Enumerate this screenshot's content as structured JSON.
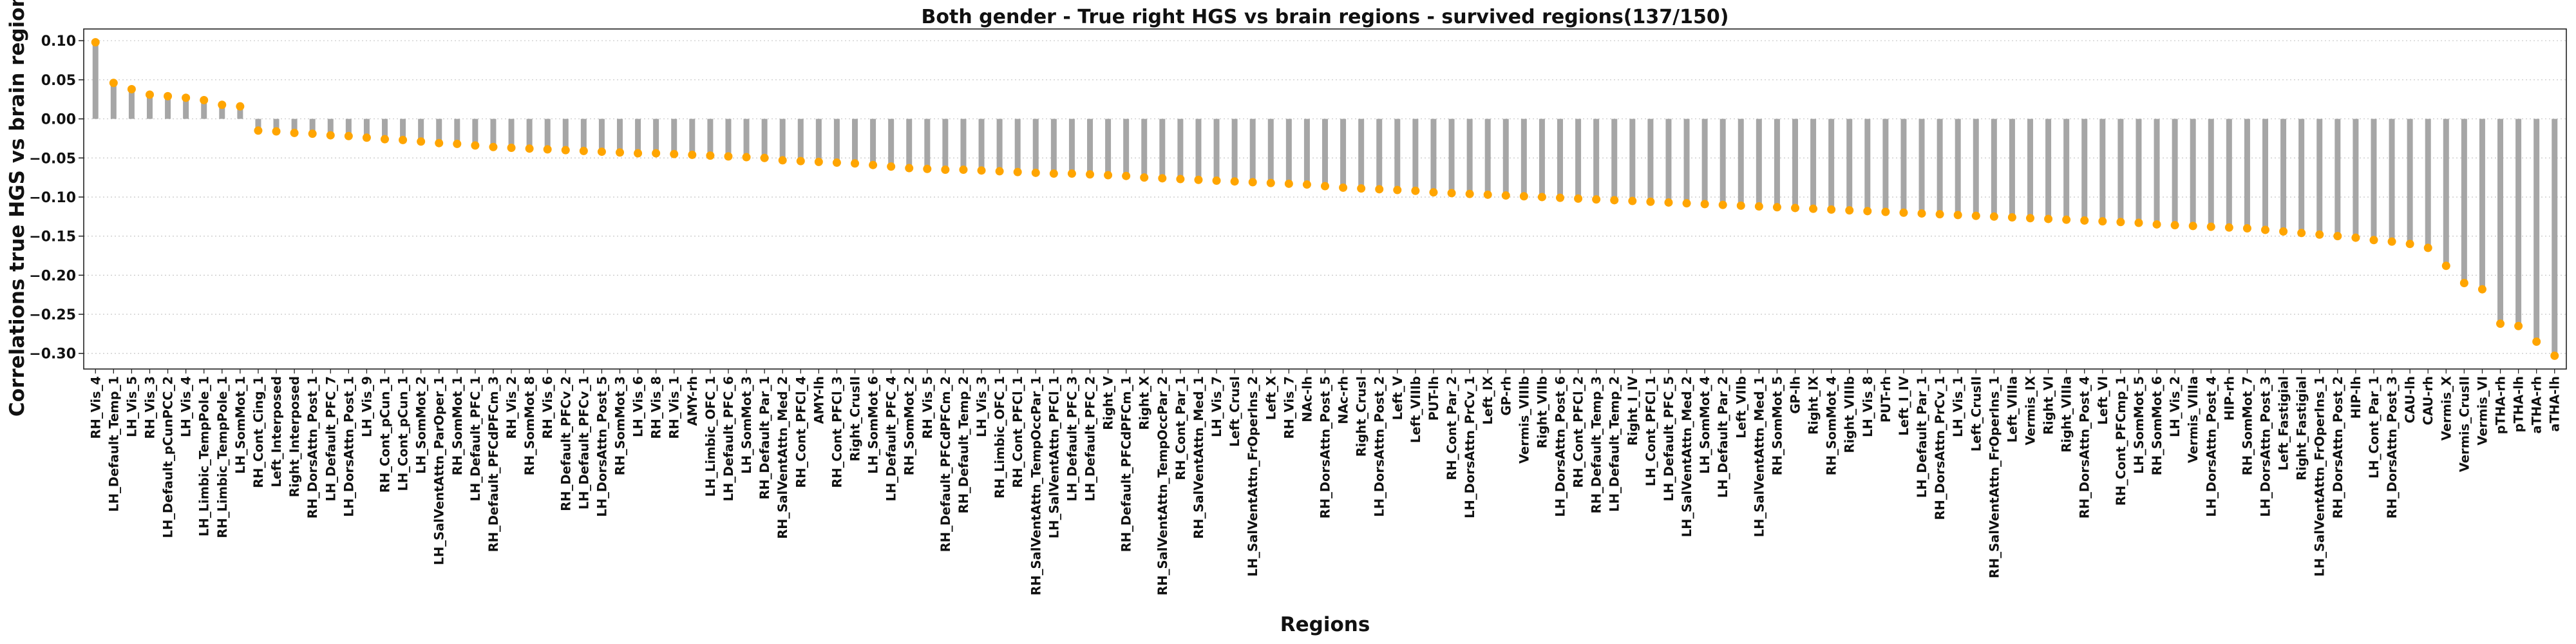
{
  "chart_data": {
    "type": "bar",
    "title": "Both gender - True right HGS vs brain regions - survived regions(137/150)",
    "xlabel": "Regions",
    "ylabel": "Correlations true HGS vs brain regions",
    "ylim": [
      -0.32,
      0.115
    ],
    "yticks": [
      0.1,
      0.05,
      0.0,
      -0.05,
      -0.1,
      -0.15,
      -0.2,
      -0.25,
      -0.3
    ],
    "ytick_labels": [
      "0.10",
      "0.05",
      "0.00",
      "−0.05",
      "−0.10",
      "−0.15",
      "−0.20",
      "−0.25",
      "−0.30"
    ],
    "grid": "horizontal dotted",
    "bar_color": "#a6a6a6",
    "marker_color": "#ffa500",
    "categories": [
      "RH_Vis_4",
      "LH_Default_Temp_1",
      "LH_Vis_5",
      "RH_Vis_3",
      "LH_Default_pCunPCC_2",
      "LH_Vis_4",
      "LH_Limbic_TempPole_1",
      "RH_Limbic_TempPole_1",
      "LH_SomMot_1",
      "RH_Cont_Cing_1",
      "Left_Interposed",
      "Right_Interposed",
      "RH_DorsAttn_Post_1",
      "LH_Default_PFC_7",
      "LH_DorsAttn_Post_1",
      "LH_Vis_9",
      "RH_Cont_pCun_1",
      "LH_Cont_pCun_1",
      "LH_SomMot_2",
      "LH_SalVentAttn_ParOper_1",
      "RH_SomMot_1",
      "LH_Default_PFC_1",
      "RH_Default_PFCdPFCm_3",
      "RH_Vis_2",
      "RH_SomMot_8",
      "RH_Vis_6",
      "RH_Default_PFCv_2",
      "LH_Default_PFCv_1",
      "LH_DorsAttn_Post_5",
      "RH_SomMot_3",
      "LH_Vis_6",
      "RH_Vis_8",
      "RH_Vis_1",
      "AMY-rh",
      "LH_Limbic_OFC_1",
      "LH_Default_PFC_6",
      "LH_SomMot_3",
      "RH_Default_Par_1",
      "RH_SalVentAttn_Med_2",
      "RH_Cont_PFCl_4",
      "AMY-lh",
      "RH_Cont_PFCl_3",
      "Right_CrusII",
      "LH_SomMot_6",
      "LH_Default_PFC_4",
      "RH_SomMot_2",
      "RH_Vis_5",
      "RH_Default_PFCdPFCm_2",
      "RH_Default_Temp_2",
      "LH_Vis_3",
      "RH_Limbic_OFC_1",
      "RH_Cont_PFCl_1",
      "RH_SalVentAttn_TempOccPar_1",
      "LH_SalVentAttn_PFCl_1",
      "LH_Default_PFC_3",
      "LH_Default_PFC_2",
      "Right_V",
      "RH_Default_PFCdPFCm_1",
      "Right_X",
      "RH_SalVentAttn_TempOccPar_2",
      "RH_Cont_Par_1",
      "RH_SalVentAttn_Med_1",
      "LH_Vis_7",
      "Left_CrusI",
      "LH_SalVentAttn_FrOperIns_2",
      "Left_X",
      "RH_Vis_7",
      "NAc-lh",
      "RH_DorsAttn_Post_5",
      "NAc-rh",
      "Right_CrusI",
      "LH_DorsAttn_Post_2",
      "Left_V",
      "Left_VIIIb",
      "PUT-lh",
      "RH_Cont_Par_2",
      "LH_DorsAttn_PrCv_1",
      "Left_IX",
      "GP-rh",
      "Vermis_VIIIb",
      "Right_VIIb",
      "LH_DorsAttn_Post_6",
      "RH_Cont_PFCl_2",
      "RH_Default_Temp_3",
      "LH_Default_Temp_2",
      "Right_I_IV",
      "LH_Cont_PFCl_1",
      "LH_Default_PFC_5",
      "LH_SalVentAttn_Med_2",
      "LH_SomMot_4",
      "LH_Default_Par_2",
      "Left_VIIb",
      "LH_SalVentAttn_Med_1",
      "RH_SomMot_5",
      "GP-lh",
      "Right_IX",
      "RH_SomMot_4",
      "Right_VIIIb",
      "LH_Vis_8",
      "PUT-rh",
      "Left_I_IV",
      "LH_Default_Par_1",
      "RH_DorsAttn_PrCv_1",
      "LH_Vis_1",
      "Left_CrusII",
      "RH_SalVentAttn_FrOperIns_1",
      "Left_VIIIa",
      "Vermis_IX",
      "Right_VI",
      "Right_VIIIa",
      "RH_DorsAttn_Post_4",
      "Left_VI",
      "RH_Cont_PFCmp_1",
      "LH_SomMot_5",
      "RH_SomMot_6",
      "LH_Vis_2",
      "Vermis_VIIIa",
      "LH_DorsAttn_Post_4",
      "HIP-rh",
      "RH_SomMot_7",
      "LH_DorsAttn_Post_3",
      "Left_Fastigial",
      "Right_Fastigial",
      "LH_SalVentAttn_FrOperIns_1",
      "RH_DorsAttn_Post_2",
      "HIP-lh",
      "LH_Cont_Par_1",
      "RH_DorsAttn_Post_3",
      "CAU-lh",
      "CAU-rh",
      "Vermis_X",
      "Vermis_CrusII",
      "Vermis_VI",
      "pTHA-rh",
      "pTHA-lh",
      "aTHA-rh",
      "aTHA-lh"
    ],
    "values": [
      0.098,
      0.046,
      0.038,
      0.031,
      0.029,
      0.027,
      0.024,
      0.018,
      0.016,
      -0.015,
      -0.016,
      -0.018,
      -0.019,
      -0.021,
      -0.022,
      -0.024,
      -0.026,
      -0.027,
      -0.029,
      -0.031,
      -0.032,
      -0.034,
      -0.036,
      -0.037,
      -0.038,
      -0.039,
      -0.04,
      -0.041,
      -0.042,
      -0.043,
      -0.044,
      -0.044,
      -0.045,
      -0.046,
      -0.047,
      -0.048,
      -0.049,
      -0.05,
      -0.053,
      -0.054,
      -0.055,
      -0.056,
      -0.057,
      -0.059,
      -0.061,
      -0.063,
      -0.064,
      -0.065,
      -0.065,
      -0.066,
      -0.067,
      -0.068,
      -0.069,
      -0.07,
      -0.07,
      -0.071,
      -0.072,
      -0.073,
      -0.075,
      -0.076,
      -0.077,
      -0.078,
      -0.079,
      -0.08,
      -0.081,
      -0.082,
      -0.083,
      -0.084,
      -0.086,
      -0.088,
      -0.089,
      -0.09,
      -0.091,
      -0.092,
      -0.094,
      -0.095,
      -0.096,
      -0.097,
      -0.098,
      -0.099,
      -0.1,
      -0.101,
      -0.102,
      -0.103,
      -0.104,
      -0.105,
      -0.106,
      -0.107,
      -0.108,
      -0.109,
      -0.11,
      -0.111,
      -0.112,
      -0.113,
      -0.114,
      -0.115,
      -0.116,
      -0.117,
      -0.118,
      -0.119,
      -0.12,
      -0.121,
      -0.122,
      -0.123,
      -0.124,
      -0.125,
      -0.126,
      -0.127,
      -0.128,
      -0.129,
      -0.13,
      -0.131,
      -0.132,
      -0.133,
      -0.135,
      -0.136,
      -0.137,
      -0.138,
      -0.139,
      -0.14,
      -0.142,
      -0.144,
      -0.146,
      -0.148,
      -0.15,
      -0.152,
      -0.155,
      -0.157,
      -0.16,
      -0.165,
      -0.188,
      -0.21,
      -0.218,
      -0.262,
      -0.265,
      -0.285,
      -0.303
    ]
  }
}
